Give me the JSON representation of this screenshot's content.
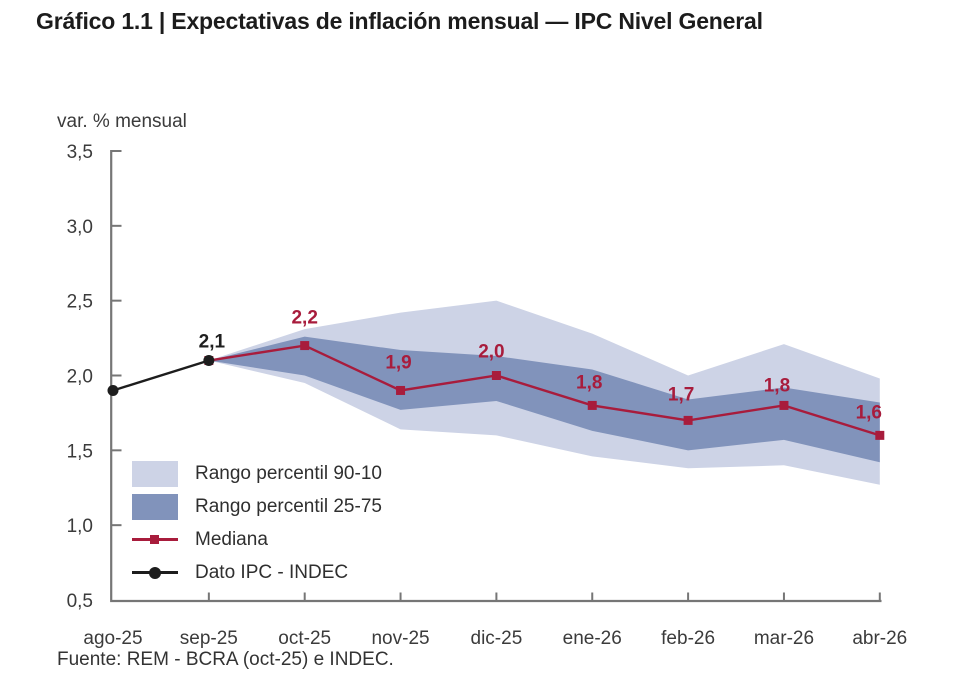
{
  "chart_data": {
    "type": "area",
    "subtype": "fan-chart",
    "title": "Gráfico 1.1 | Expectativas de inflación mensual — IPC Nivel General",
    "ylabel": "var. % mensual",
    "source_note": "Fuente: REM - BCRA (oct-25) e INDEC.",
    "categories": [
      "ago-25",
      "sep-25",
      "oct-25",
      "nov-25",
      "dic-25",
      "ene-26",
      "feb-26",
      "mar-26",
      "abr-26"
    ],
    "ylim": [
      0.5,
      3.5
    ],
    "yticks": [
      3.5,
      3.0,
      2.5,
      2.0,
      1.5,
      1.0,
      0.5
    ],
    "ytick_labels": [
      "3,5",
      "3,0",
      "2,5",
      "2,0",
      "1,5",
      "1,0",
      "0,5"
    ],
    "grid": false,
    "legend_position": "inside bottom-left",
    "series": [
      {
        "name": "Rango percentil 90-10",
        "type": "band",
        "color": "#cdd3e6",
        "x": [
          "sep-25",
          "oct-25",
          "nov-25",
          "dic-25",
          "ene-26",
          "feb-26",
          "mar-26",
          "abr-26"
        ],
        "upper": [
          2.1,
          2.31,
          2.42,
          2.5,
          2.28,
          2.0,
          2.21,
          1.98
        ],
        "lower": [
          2.1,
          1.95,
          1.64,
          1.6,
          1.46,
          1.38,
          1.4,
          1.27
        ]
      },
      {
        "name": "Rango percentil 25-75",
        "type": "band",
        "color": "#8193bb",
        "x": [
          "sep-25",
          "oct-25",
          "nov-25",
          "dic-25",
          "ene-26",
          "feb-26",
          "mar-26",
          "abr-26"
        ],
        "upper": [
          2.1,
          2.26,
          2.17,
          2.13,
          2.04,
          1.84,
          1.92,
          1.82
        ],
        "lower": [
          2.1,
          2.0,
          1.77,
          1.83,
          1.63,
          1.5,
          1.57,
          1.42
        ]
      },
      {
        "name": "Mediana",
        "type": "line",
        "marker": "square",
        "color": "#a81c3c",
        "x": [
          "sep-25",
          "oct-25",
          "nov-25",
          "dic-25",
          "ene-26",
          "feb-26",
          "mar-26",
          "abr-26"
        ],
        "values": [
          2.1,
          2.2,
          1.9,
          2.0,
          1.8,
          1.7,
          1.8,
          1.6
        ],
        "point_labels": [
          "",
          "2,2",
          "1,9",
          "2,0",
          "1,8",
          "1,7",
          "1,8",
          "1,6"
        ]
      },
      {
        "name": "Dato IPC - INDEC",
        "type": "line",
        "marker": "circle",
        "color": "#1d1d1d",
        "x": [
          "ago-25",
          "sep-25"
        ],
        "values": [
          1.9,
          2.1
        ],
        "point_labels": [
          "",
          "2,1"
        ]
      }
    ]
  },
  "colors": {
    "axis": "#767676",
    "tick_text": "#3b3b3b",
    "title_text": "#1c1c1c",
    "band_90_10": "#cdd3e6",
    "band_25_75": "#8193bb",
    "mediana": "#a81c3c",
    "ipc": "#1d1d1d"
  }
}
